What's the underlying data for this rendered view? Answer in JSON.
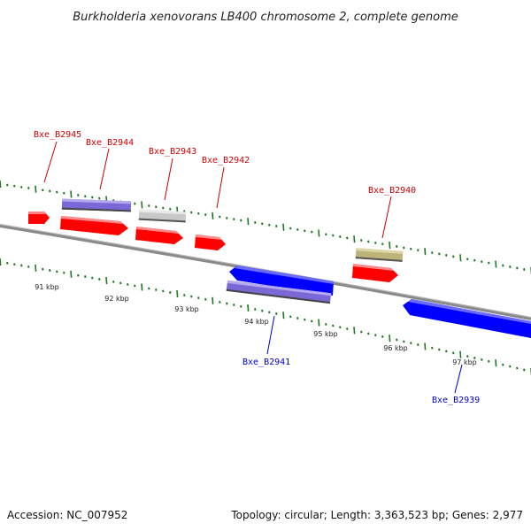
{
  "title": "Burkholderia xenovorans LB400 chromosome 2, complete genome",
  "footer": {
    "accession": "Accession: NC_007952",
    "summary": "Topology: circular; Length: 3,363,523 bp; Genes: 2,977"
  },
  "colors": {
    "backbone": "#8a8a8a",
    "tick": "#1e7a1e",
    "label_forward": "#cc0000",
    "label_reverse": "#0000cc",
    "red": "#ff0000",
    "purple": "#7b68d6",
    "grey": "#c8c8c8",
    "khaki": "#bdb47a",
    "blue": "#0000ff"
  },
  "kbp_labels": [
    "91 kbp",
    "92 kbp",
    "93 kbp",
    "94 kbp",
    "95 kbp",
    "96 kbp",
    "97 kbp"
  ],
  "gene_labels": [
    {
      "text": "Bxe_B2945",
      "strand": "forward"
    },
    {
      "text": "Bxe_B2944",
      "strand": "forward"
    },
    {
      "text": "Bxe_B2943",
      "strand": "forward"
    },
    {
      "text": "Bxe_B2942",
      "strand": "forward"
    },
    {
      "text": "Bxe_B2940",
      "strand": "forward"
    },
    {
      "text": "Bxe_B2941",
      "strand": "reverse"
    },
    {
      "text": "Bxe_B2939",
      "strand": "reverse"
    }
  ]
}
